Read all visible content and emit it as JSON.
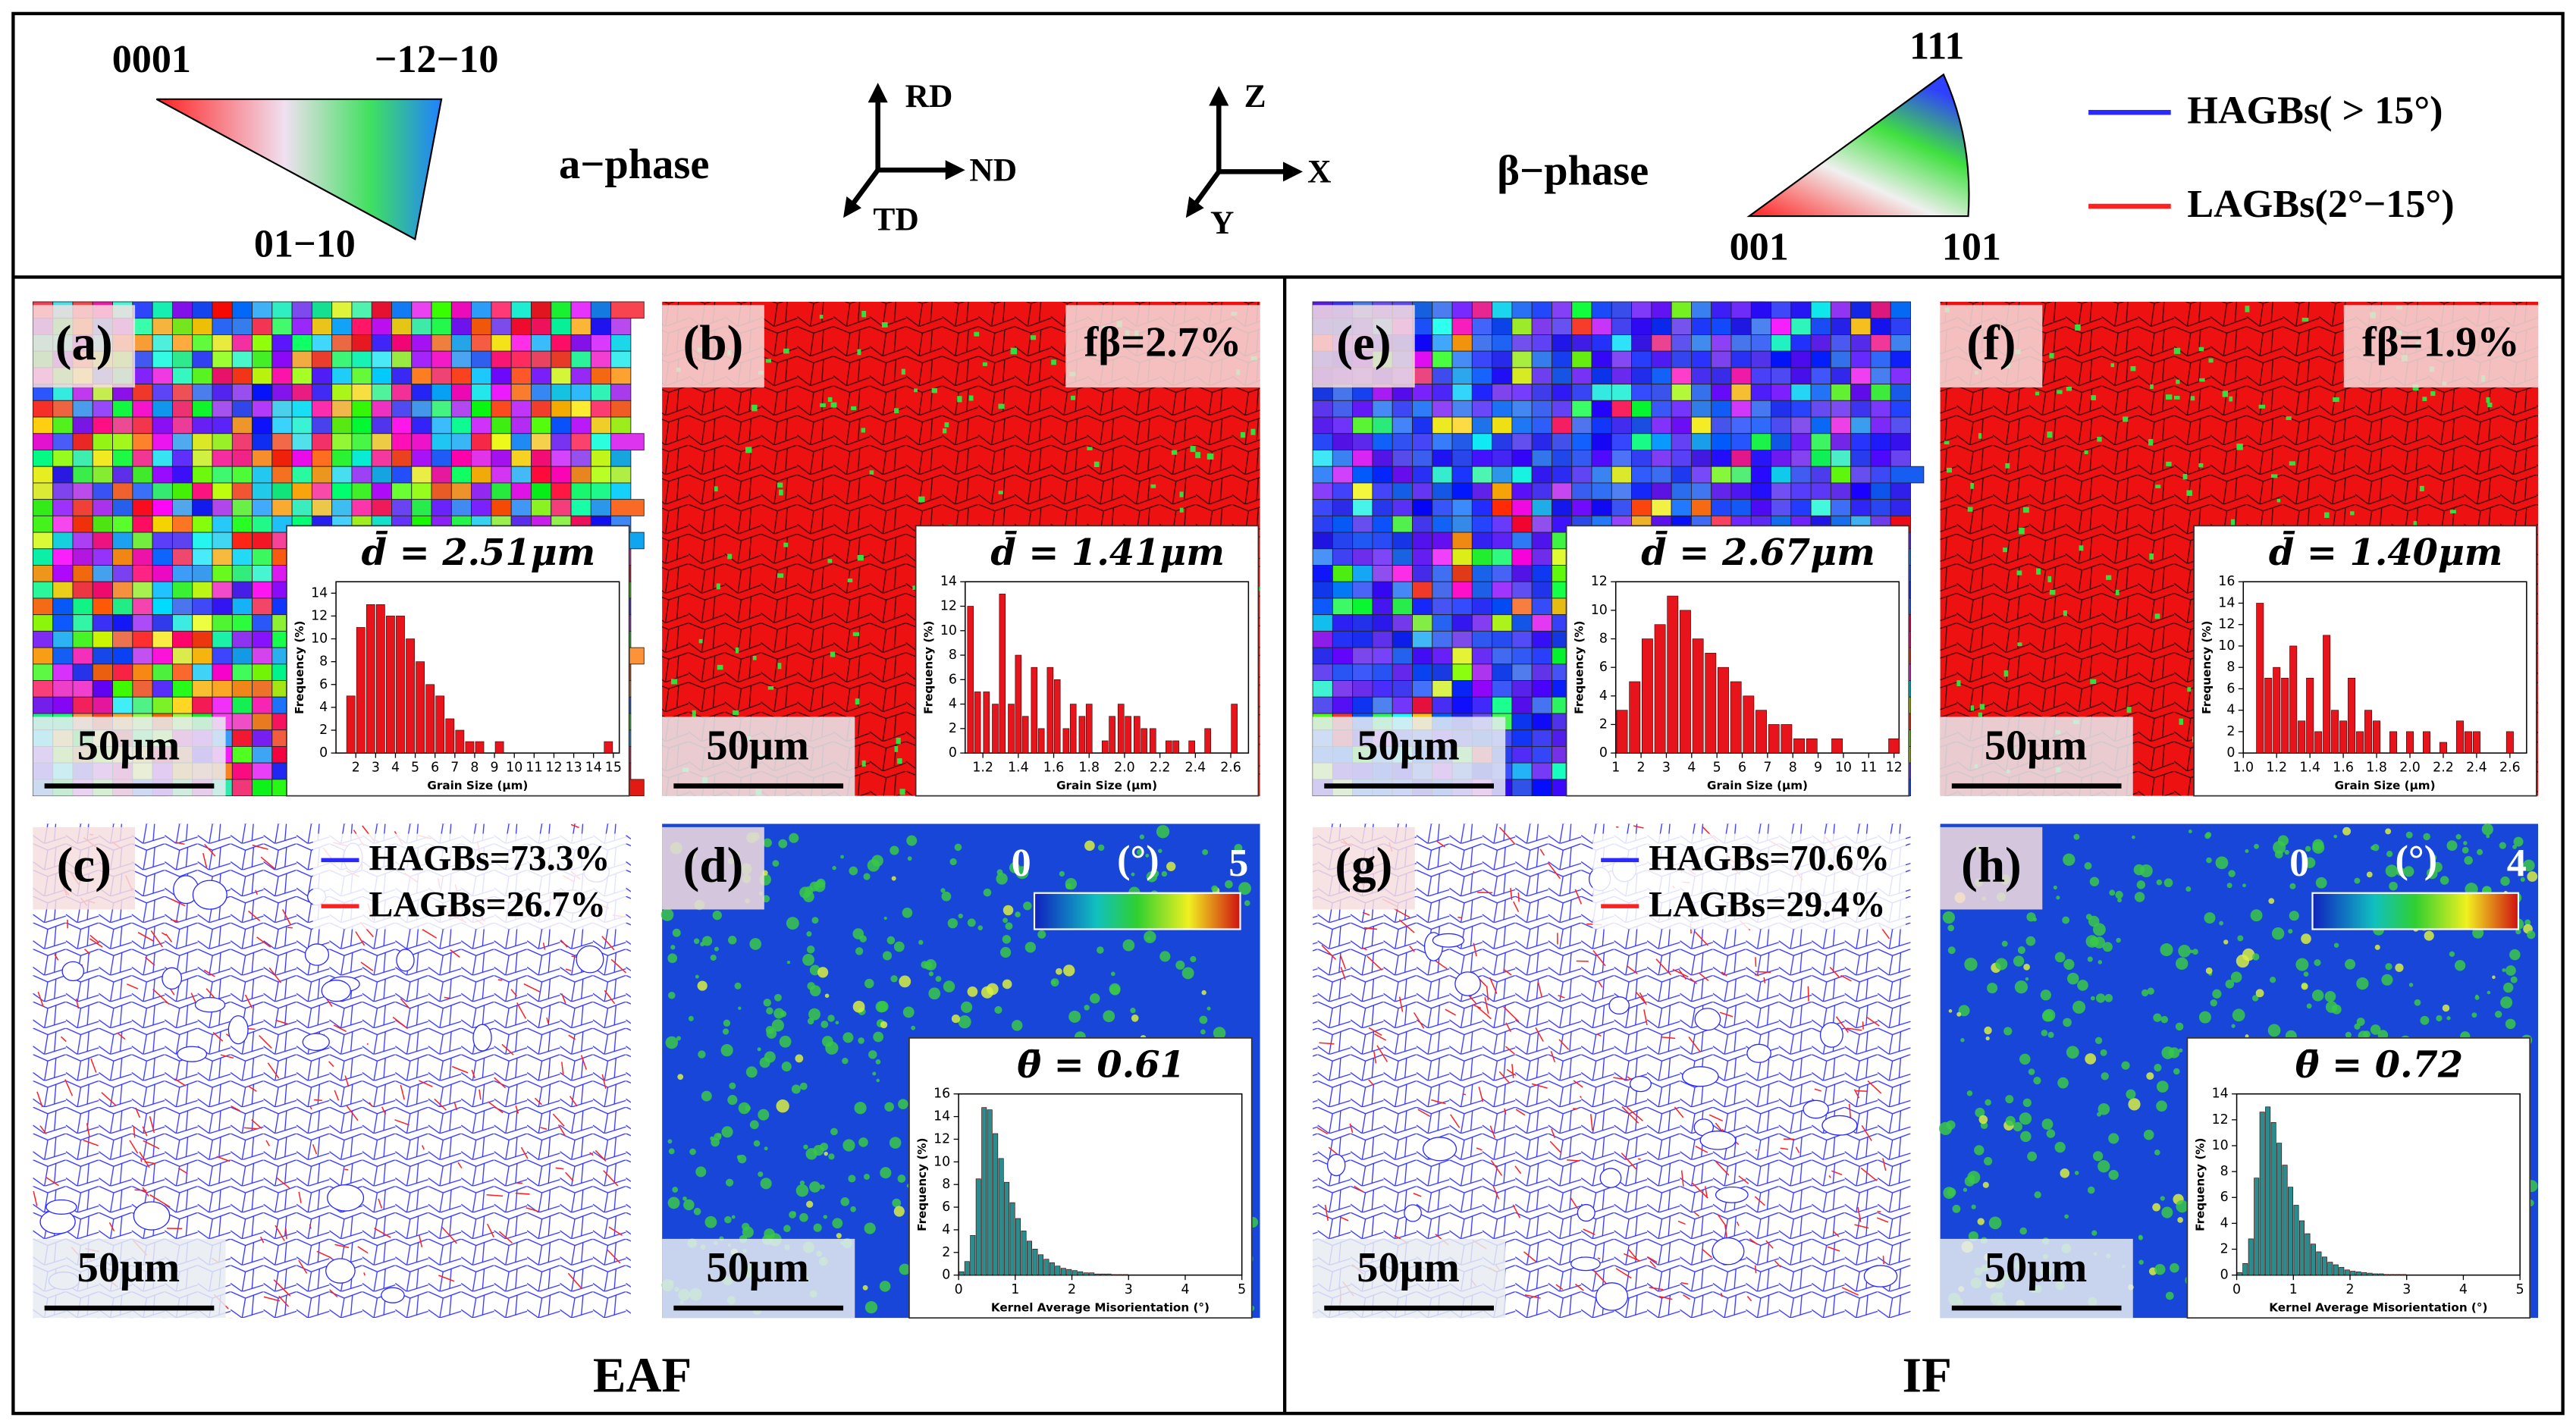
{
  "legend": {
    "alpha_ipf": {
      "top_left": "0001",
      "top_right": "−12−10",
      "bottom": "01−10"
    },
    "alpha_label": "a−phase",
    "axes_1": {
      "up": "RD",
      "right": "ND",
      "diag": "TD"
    },
    "axes_2": {
      "up": "Z",
      "right": "X",
      "diag": "Y"
    },
    "beta_label": "β−phase",
    "beta_ipf": {
      "top": "111",
      "left": "001",
      "right": "101"
    },
    "boundaries": [
      {
        "name": "HAGBs( > 15°)",
        "color": "#2a2aff"
      },
      {
        "name": "LAGBs(2°−15°)",
        "color": "#ff2020"
      }
    ]
  },
  "groups": [
    {
      "label": "EAF",
      "panels": [
        {
          "label": "(a)",
          "scale_bar": "50μm",
          "inset": {
            "title": "d̄ = 2.51μm",
            "xlabel": "Grain Size (μm)",
            "ylabel": "Frequency (%)",
            "color": "#e8141c",
            "xlim": [
              1,
              15.3
            ],
            "xticks": [
              2,
              3,
              4,
              5,
              6,
              7,
              8,
              9,
              10,
              11,
              12,
              13,
              14,
              15
            ],
            "ylim": [
              0,
              15
            ],
            "yticks": [
              0,
              2,
              4,
              6,
              8,
              10,
              12,
              14
            ],
            "x": [
              1.75,
              2.25,
              2.75,
              3.25,
              3.75,
              4.25,
              4.75,
              5.25,
              5.75,
              6.25,
              6.75,
              7.25,
              7.75,
              8.25,
              9.25,
              14.75
            ],
            "values": [
              5,
              11,
              13,
              13,
              12,
              12,
              10,
              8,
              6,
              5,
              3,
              2,
              1,
              1,
              1,
              1
            ]
          }
        },
        {
          "label": "(b)",
          "scale_bar": "50μm",
          "phase_fraction": "fβ=2.7%",
          "inset": {
            "title": "d̄ = 1.41μm",
            "xlabel": "Grain Size (μm)",
            "ylabel": "Frequency (%)",
            "color": "#e8141c",
            "xlim": [
              1.1,
              2.7
            ],
            "xticks": [
              1.2,
              1.4,
              1.6,
              1.8,
              {
                "value": 2,
                "label": "2.0"
              },
              2.2,
              2.4,
              2.6
            ],
            "ylim": [
              0,
              14
            ],
            "yticks": [
              0,
              2,
              4,
              6,
              8,
              10,
              12,
              14
            ],
            "x": [
              1.13,
              1.17,
              1.22,
              1.27,
              1.31,
              1.36,
              1.4,
              1.44,
              1.49,
              1.53,
              1.58,
              1.62,
              1.67,
              1.71,
              1.76,
              1.8,
              1.89,
              1.93,
              1.98,
              2.02,
              2.07,
              2.11,
              2.16,
              2.25,
              2.29,
              2.38,
              2.47,
              2.62
            ],
            "values": [
              12,
              5,
              5,
              4,
              13,
              4,
              8,
              3,
              7,
              2,
              7,
              6,
              2,
              4,
              3,
              4,
              1,
              3,
              4,
              3,
              3,
              2,
              2,
              1,
              1,
              1,
              2,
              4
            ]
          }
        },
        {
          "label": "(c)",
          "scale_bar": "50μm",
          "hagb": "HAGBs=73.3%",
          "lagb": "LAGBs=26.7%"
        },
        {
          "label": "(d)",
          "scale_bar": "50μm",
          "colorbar": {
            "min": 0,
            "unit": "(°)",
            "max": 5
          },
          "inset": {
            "title": "θ̄ = 0.61",
            "xlabel": "Kernel Average Misorientation (°)",
            "ylabel": "Frequency (%)",
            "color": "#2a8c8c",
            "xlim": [
              0,
              5
            ],
            "xticks": [
              0,
              1,
              2,
              3,
              4,
              5
            ],
            "ylim": [
              0,
              16
            ],
            "yticks": [
              0,
              2,
              4,
              6,
              8,
              10,
              12,
              14,
              16
            ],
            "x": [
              0.05,
              0.15,
              0.25,
              0.35,
              0.45,
              0.55,
              0.65,
              0.75,
              0.85,
              0.95,
              1.05,
              1.15,
              1.25,
              1.35,
              1.45,
              1.55,
              1.65,
              1.75,
              1.85,
              1.95,
              2.05,
              2.15,
              2.25,
              2.35,
              2.45,
              2.55,
              2.65,
              2.75,
              2.85,
              2.95
            ],
            "values": [
              0.3,
              1.2,
              3.5,
              8.5,
              14.8,
              14.6,
              12.5,
              10.3,
              8.2,
              6.4,
              5,
              3.9,
              3,
              2.3,
              1.8,
              1.4,
              1.1,
              0.8,
              0.6,
              0.5,
              0.4,
              0.3,
              0.2,
              0.2,
              0.1,
              0.1,
              0.1,
              0.05,
              0.05,
              0.05
            ]
          }
        }
      ]
    },
    {
      "label": "IF",
      "panels": [
        {
          "label": "(e)",
          "scale_bar": "50μm",
          "inset": {
            "title": "d̄ = 2.67μm",
            "xlabel": "Grain Size (μm)",
            "ylabel": "Frequency (%)",
            "color": "#e8141c",
            "xlim": [
              1,
              12.2
            ],
            "xticks": [
              1,
              2,
              3,
              4,
              5,
              6,
              7,
              8,
              9,
              10,
              11,
              12
            ],
            "ylim": [
              0,
              12
            ],
            "yticks": [
              0,
              2,
              4,
              6,
              8,
              10,
              12
            ],
            "x": [
              1.25,
              1.75,
              2.25,
              2.75,
              3.25,
              3.75,
              4.25,
              4.75,
              5.25,
              5.75,
              6.25,
              6.75,
              7.25,
              7.75,
              8.25,
              8.75,
              9.75,
              12
            ],
            "values": [
              3,
              5,
              8,
              9,
              11,
              10,
              8,
              7,
              6,
              5,
              4,
              3,
              2,
              2,
              1,
              1,
              1,
              1
            ]
          }
        },
        {
          "label": "(f)",
          "scale_bar": "50μm",
          "phase_fraction": "fβ=1.9%",
          "inset": {
            "title": "d̄ = 1.40μm",
            "xlabel": "Grain Size (μm)",
            "ylabel": "Frequency (%)",
            "color": "#e8141c",
            "xlim": [
              1,
              2.7
            ],
            "xticks": [
              {
                "value": 1,
                "label": "1.0"
              },
              1.2,
              1.4,
              1.6,
              1.8,
              {
                "value": 2,
                "label": "2.0"
              },
              2.2,
              2.4,
              2.6
            ],
            "ylim": [
              0,
              16
            ],
            "yticks": [
              0,
              2,
              4,
              6,
              8,
              10,
              12,
              14,
              16
            ],
            "x": [
              1.1,
              1.15,
              1.2,
              1.25,
              1.3,
              1.35,
              1.4,
              1.45,
              1.5,
              1.55,
              1.6,
              1.65,
              1.7,
              1.75,
              1.8,
              1.9,
              2,
              2.1,
              2.2,
              2.3,
              2.35,
              2.4,
              2.6
            ],
            "values": [
              14,
              7,
              8,
              7,
              10,
              3,
              7,
              2,
              11,
              4,
              3,
              7,
              2,
              4,
              3,
              2,
              2,
              2,
              1,
              3,
              2,
              2,
              2
            ]
          }
        },
        {
          "label": "(g)",
          "scale_bar": "50μm",
          "hagb": "HAGBs=70.6%",
          "lagb": "LAGBs=29.4%"
        },
        {
          "label": "(h)",
          "scale_bar": "50μm",
          "colorbar": {
            "min": 0,
            "unit": "(°)",
            "max": 4
          },
          "inset": {
            "title": "θ̄ = 0.72",
            "xlabel": "Kernel Average Misorientation (°)",
            "ylabel": "Frequency (%)",
            "color": "#2a8c8c",
            "xlim": [
              0,
              5
            ],
            "xticks": [
              0,
              1,
              2,
              3,
              4,
              5
            ],
            "ylim": [
              0,
              14
            ],
            "yticks": [
              0,
              2,
              4,
              6,
              8,
              10,
              12,
              14
            ],
            "x": [
              0.05,
              0.15,
              0.25,
              0.35,
              0.45,
              0.55,
              0.65,
              0.75,
              0.85,
              0.95,
              1.05,
              1.15,
              1.25,
              1.35,
              1.45,
              1.55,
              1.65,
              1.75,
              1.85,
              1.95,
              2.05,
              2.15,
              2.25,
              2.35,
              2.45,
              2.55,
              2.65,
              2.75,
              2.85,
              2.95
            ],
            "values": [
              0.2,
              0.9,
              2.8,
              7.5,
              12.6,
              13,
              11.8,
              10.2,
              8.5,
              6.8,
              5.4,
              4.2,
              3.2,
              2.4,
              1.8,
              1.4,
              1,
              0.8,
              0.6,
              0.4,
              0.3,
              0.25,
              0.2,
              0.15,
              0.1,
              0.1,
              0.05,
              0.05,
              0.05,
              0.05
            ]
          }
        }
      ]
    }
  ]
}
